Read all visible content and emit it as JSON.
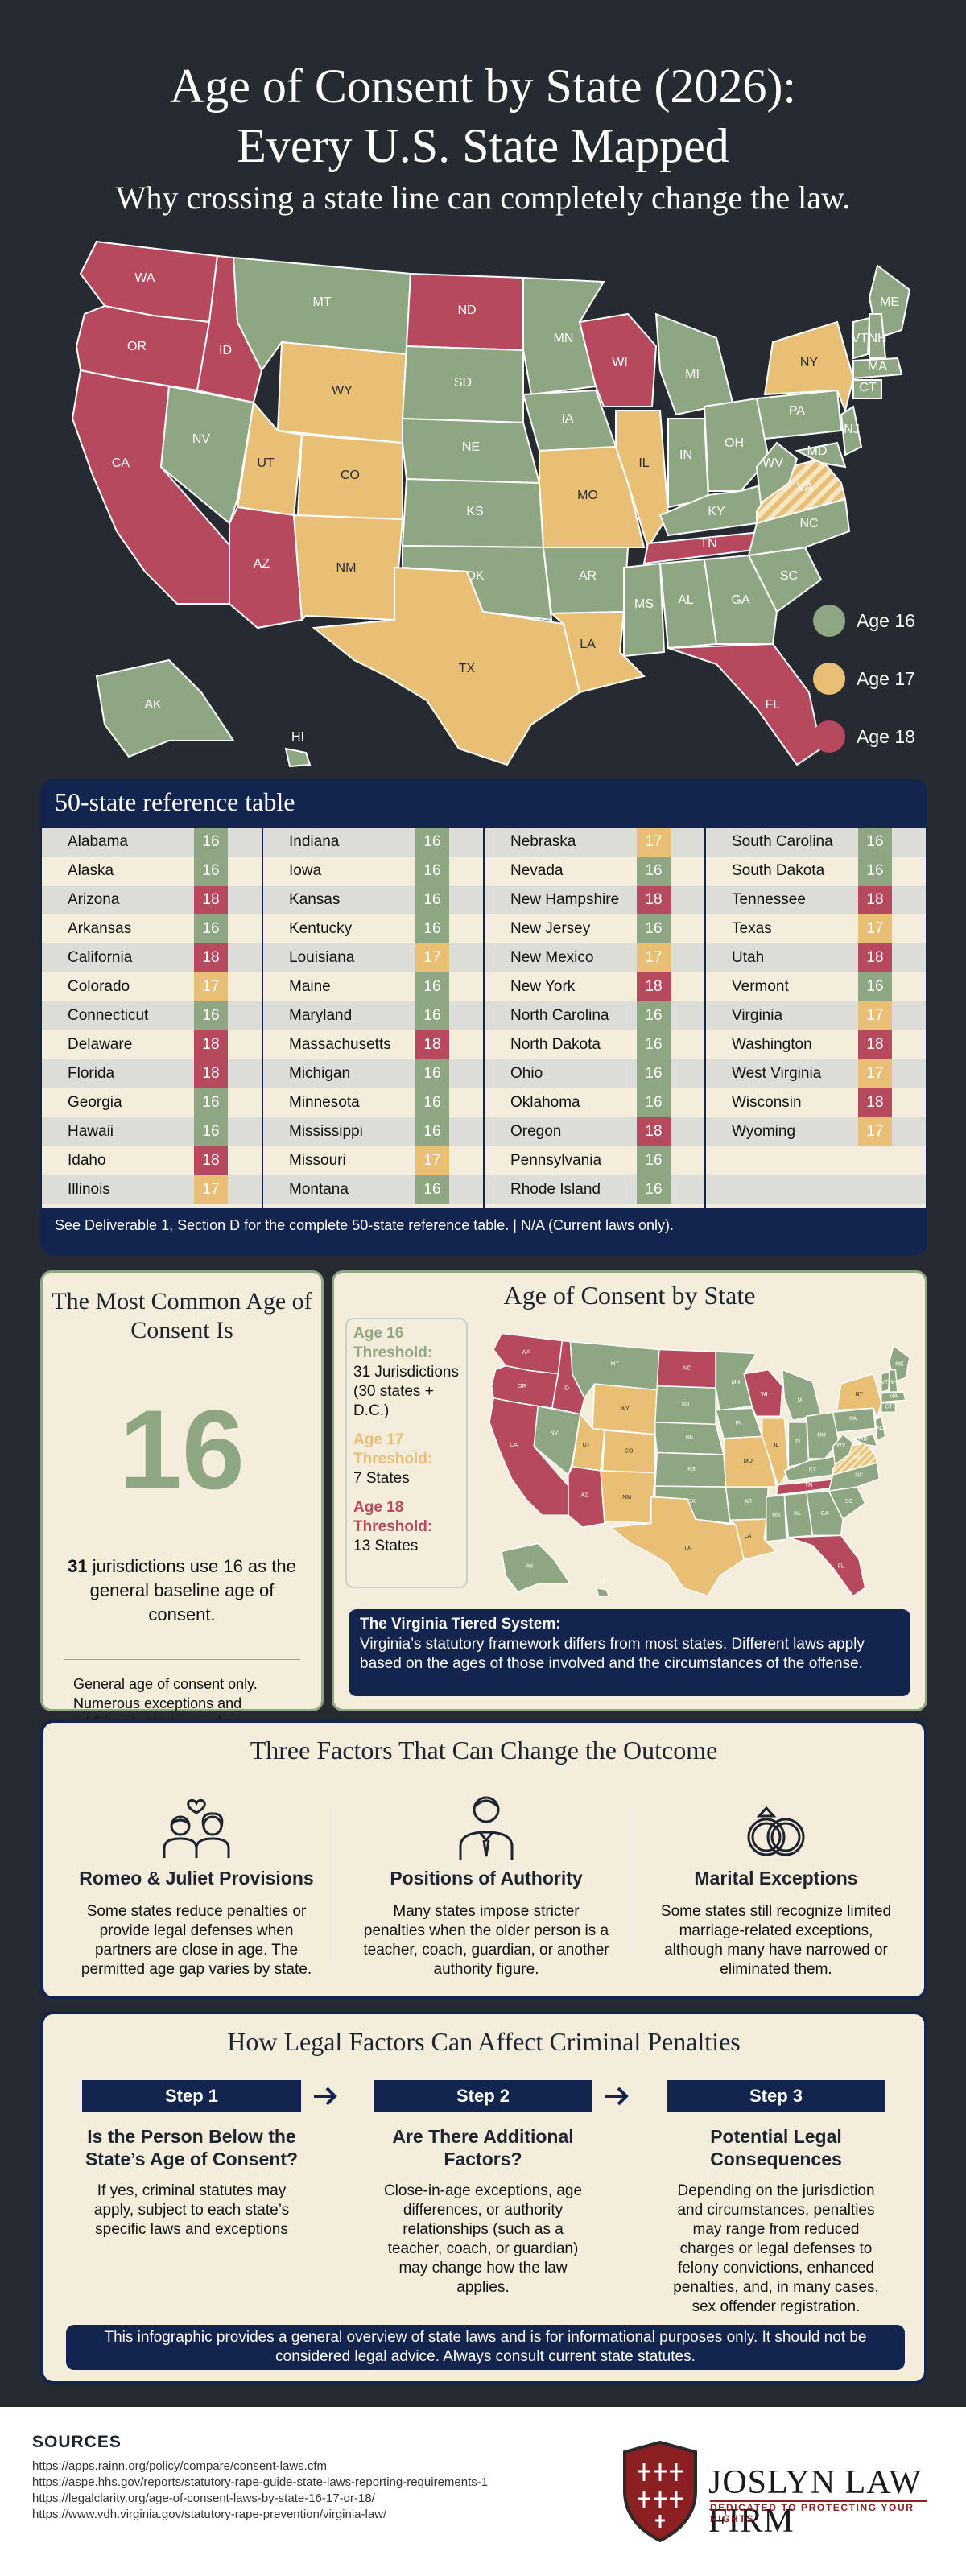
{
  "colors": {
    "age16": "#8ea681",
    "age17": "#e9bf76",
    "age18": "#b6495e",
    "navy": "#13244e",
    "bg": "#262b32",
    "cream": "#f4eddc"
  },
  "header": {
    "title_line1": "Age of Consent by State (2026):",
    "title_line2": "Every U.S. State Mapped",
    "subtitle": "Why crossing a state line can completely change the law."
  },
  "legend": [
    {
      "label": "Age 16",
      "color": "#8ea681"
    },
    {
      "label": "Age 17",
      "color": "#e9bf76"
    },
    {
      "label": "Age 18",
      "color": "#b6495e"
    }
  ],
  "map_states": [
    {
      "abbr": "WA",
      "age": 18
    },
    {
      "abbr": "OR",
      "age": 18
    },
    {
      "abbr": "CA",
      "age": 18
    },
    {
      "abbr": "ID",
      "age": 18
    },
    {
      "abbr": "NV",
      "age": 16
    },
    {
      "abbr": "MT",
      "age": 16
    },
    {
      "abbr": "WY",
      "age": 17
    },
    {
      "abbr": "UT",
      "age": 17
    },
    {
      "abbr": "AZ",
      "age": 18
    },
    {
      "abbr": "CO",
      "age": 17
    },
    {
      "abbr": "NM",
      "age": 17
    },
    {
      "abbr": "ND",
      "age": 18
    },
    {
      "abbr": "SD",
      "age": 16
    },
    {
      "abbr": "NE",
      "age": 16
    },
    {
      "abbr": "KS",
      "age": 16
    },
    {
      "abbr": "OK",
      "age": 16
    },
    {
      "abbr": "TX",
      "age": 17
    },
    {
      "abbr": "MN",
      "age": 16
    },
    {
      "abbr": "IA",
      "age": 16
    },
    {
      "abbr": "MO",
      "age": 17
    },
    {
      "abbr": "AR",
      "age": 16
    },
    {
      "abbr": "LA",
      "age": 17
    },
    {
      "abbr": "WI",
      "age": 18
    },
    {
      "abbr": "IL",
      "age": 17
    },
    {
      "abbr": "MI",
      "age": 16
    },
    {
      "abbr": "IN",
      "age": 16
    },
    {
      "abbr": "OH",
      "age": 16
    },
    {
      "abbr": "KY",
      "age": 16
    },
    {
      "abbr": "TN",
      "age": 18
    },
    {
      "abbr": "MS",
      "age": 16
    },
    {
      "abbr": "AL",
      "age": 16
    },
    {
      "abbr": "GA",
      "age": 16
    },
    {
      "abbr": "FL",
      "age": 18
    },
    {
      "abbr": "SC",
      "age": 16
    },
    {
      "abbr": "NC",
      "age": 16
    },
    {
      "abbr": "VA",
      "age": 18
    },
    {
      "abbr": "WV",
      "age": 16
    },
    {
      "abbr": "PA",
      "age": 16
    },
    {
      "abbr": "NY",
      "age": 17
    },
    {
      "abbr": "ME",
      "age": 16
    },
    {
      "abbr": "VT",
      "age": 16
    },
    {
      "abbr": "NH",
      "age": 16
    },
    {
      "abbr": "MA",
      "age": 16
    },
    {
      "abbr": "CT",
      "age": 16
    },
    {
      "abbr": "NJ",
      "age": 16
    },
    {
      "abbr": "MD",
      "age": 16
    },
    {
      "abbr": "AK",
      "age": 16
    },
    {
      "abbr": "HI",
      "age": 16
    }
  ],
  "reference_table": {
    "title": "50-state reference table",
    "footnote": "See Deliverable 1, Section D for the complete 50-state reference table. | N/A (Current laws only).",
    "columns": [
      [
        [
          "Alabama",
          16
        ],
        [
          "Alaska",
          16
        ],
        [
          "Arizona",
          18
        ],
        [
          "Arkansas",
          16
        ],
        [
          "California",
          18
        ],
        [
          "Colorado",
          17
        ],
        [
          "Connecticut",
          16
        ],
        [
          "Delaware",
          18
        ],
        [
          "Florida",
          18
        ],
        [
          "Georgia",
          16
        ],
        [
          "Hawaii",
          16
        ],
        [
          "Idaho",
          18
        ],
        [
          "Illinois",
          17
        ]
      ],
      [
        [
          "Indiana",
          16
        ],
        [
          "Iowa",
          16
        ],
        [
          "Kansas",
          16
        ],
        [
          "Kentucky",
          16
        ],
        [
          "Louisiana",
          17
        ],
        [
          "Maine",
          16
        ],
        [
          "Maryland",
          16
        ],
        [
          "Massachusetts",
          18
        ],
        [
          "Michigan",
          16
        ],
        [
          "Minnesota",
          16
        ],
        [
          "Mississippi",
          16
        ],
        [
          "Missouri",
          17
        ],
        [
          "Montana",
          16
        ]
      ],
      [
        [
          "Nebraska",
          17
        ],
        [
          "Nevada",
          16
        ],
        [
          "New Hampshire",
          18
        ],
        [
          "New Jersey",
          16
        ],
        [
          "New Mexico",
          17
        ],
        [
          "New York",
          18
        ],
        [
          "North Carolina",
          16
        ],
        [
          "North Dakota",
          16
        ],
        [
          "Ohio",
          16
        ],
        [
          "Oklahoma",
          16
        ],
        [
          "Oregon",
          18
        ],
        [
          "Pennsylvania",
          16
        ],
        [
          "Rhode Island",
          16
        ]
      ],
      [
        [
          "South Carolina",
          16
        ],
        [
          "South Dakota",
          16
        ],
        [
          "Tennessee",
          18
        ],
        [
          "Texas",
          17
        ],
        [
          "Utah",
          18
        ],
        [
          "Vermont",
          16
        ],
        [
          "Virginia",
          17
        ],
        [
          "Washington",
          18
        ],
        [
          "West Virginia",
          17
        ],
        [
          "Wisconsin",
          18
        ],
        [
          "Wyoming",
          17
        ]
      ]
    ]
  },
  "common_age": {
    "heading": "The Most Common Age of Consent Is",
    "value": "16",
    "count": "31",
    "desc": " jurisdictions use 16 as the general baseline age of consent.",
    "note": "General age of consent only. Numerous exceptions and additional statutes apply."
  },
  "mini_map": {
    "heading": "Age of Consent by State",
    "thresholds": [
      {
        "title": "Age 16 Threshold:",
        "value": "31 Jurisdictions (30 states + D.C.)",
        "color": "#8ea681"
      },
      {
        "title": "Age 17 Threshold:",
        "value": "7 States",
        "color": "#e9bf76"
      },
      {
        "title": "Age 18 Threshold:",
        "value": "13 States",
        "color": "#b6495e"
      }
    ],
    "virginia_title": "The Virginia Tiered System:",
    "virginia_desc": "Virginia’s statutory framework differs from most states. Different laws apply based on the ages of those involved and the circumstances of the offense."
  },
  "factors": {
    "heading": "Three Factors That Can Change the Outcome",
    "items": [
      {
        "title": "Romeo & Juliet Provisions",
        "desc": "Some states reduce penalties or provide legal defenses when partners are close in age. The permitted age gap varies by state.",
        "icon": "couple-icon"
      },
      {
        "title": "Positions of Authority",
        "desc": "Many states impose stricter penalties when the older person is a teacher, coach, guardian, or another authority figure.",
        "icon": "authority-person-icon"
      },
      {
        "title": "Marital Exceptions",
        "desc": "Some states still recognize limited marriage-related exceptions, although many have narrowed or eliminated them.",
        "icon": "rings-icon"
      }
    ]
  },
  "steps": {
    "heading": "How Legal Factors Can Affect Criminal Penalties",
    "items": [
      {
        "label": "Step 1",
        "q": "Is the Person Below the State’s Age of Consent?",
        "d": "If yes, criminal statutes may apply, subject to each state’s specific laws and exceptions"
      },
      {
        "label": "Step 2",
        "q": "Are There Additional Factors?",
        "d": "Close-in-age exceptions, age differences, or authority relationships (such as a teacher, coach, or guardian) may change how the law applies."
      },
      {
        "label": "Step 3",
        "q": "Potential Legal Consequences",
        "d": "Depending on the jurisdiction and circumstances, penalties may range from reduced charges or legal defenses to felony convictions, enhanced penalties, and, in many cases, sex offender registration."
      }
    ],
    "disclaimer": "This infographic provides a general overview of state laws and is for informational purposes only. It should not be considered legal advice. Always consult current state statutes."
  },
  "footer": {
    "sources_title": "SOURCES",
    "sources": [
      "https://apps.rainn.org/policy/compare/consent-laws.cfm",
      "https://aspe.hhs.gov/reports/statutory-rape-guide-state-laws-reporting-requirements-1",
      "https://legalclarity.org/age-of-consent-laws-by-state-16-17-or-18/",
      "https://www.vdh.virginia.gov/statutory-rape-prevention/virginia-law/"
    ],
    "firm_name": "JOSLYN LAW FIRM",
    "firm_tagline": "DEDICATED TO PROTECTING YOUR RIGHTS"
  }
}
